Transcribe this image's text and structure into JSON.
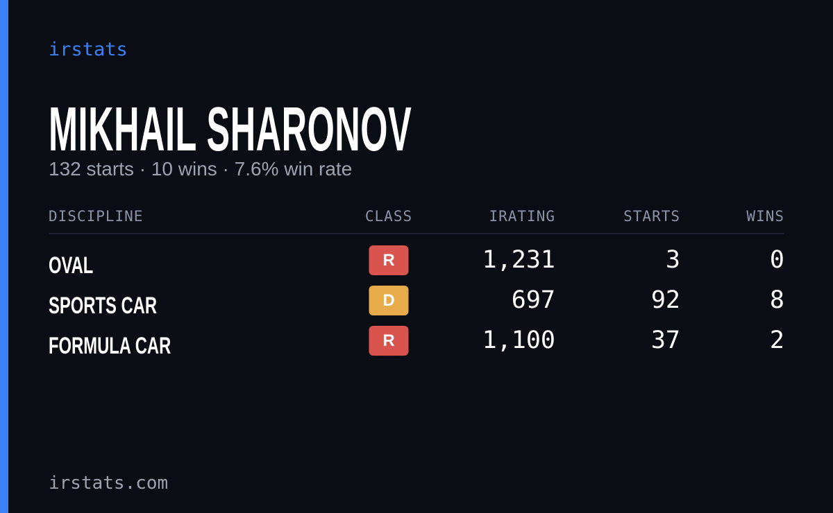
{
  "brand": "irstats",
  "name": "MIKHAIL SHARONOV",
  "summary": "132 starts · 10 wins · 7.6% win rate",
  "table": {
    "headers": [
      "DISCIPLINE",
      "CLASS",
      "IRATING",
      "STARTS",
      "WINS"
    ],
    "rows": [
      [
        "OVAL",
        "R",
        "1,231",
        "3",
        "0"
      ],
      [
        "SPORTS CAR",
        "D",
        "697",
        "92",
        "8"
      ],
      [
        "FORMULA CAR",
        "R",
        "1,100",
        "37",
        "2"
      ]
    ],
    "class_colors": [
      "#d9534f",
      "#e8ab4b",
      "#d9534f"
    ]
  },
  "footer": "irstats.com"
}
